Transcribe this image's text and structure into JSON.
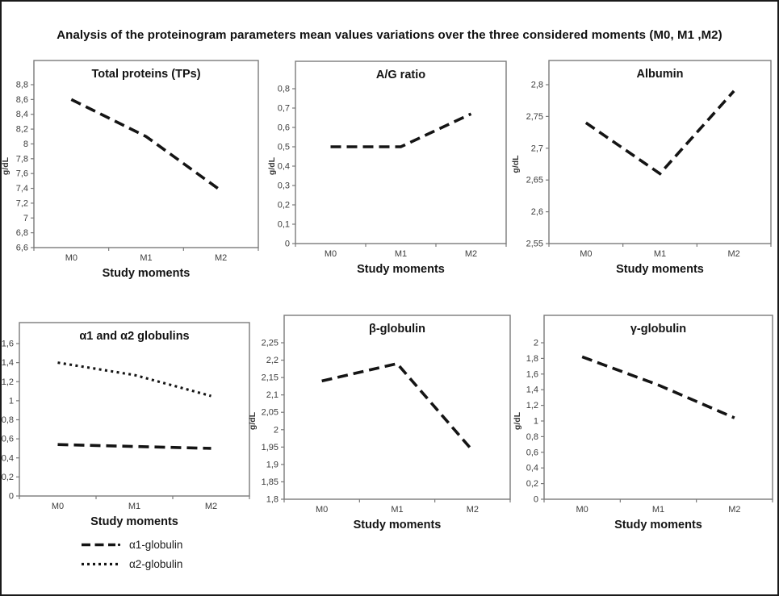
{
  "figure": {
    "title": "Analysis of the proteinogram parameters mean values variations over the three considered moments  (M0, M1 ,M2)"
  },
  "colors": {
    "line": "#141414",
    "plot_border": "#7a7a7a",
    "tick_text": "#3d3d3d",
    "background": "#ffffff",
    "frame": "#1a1a1a"
  },
  "legend": {
    "items": [
      {
        "label": "α1-globulin",
        "style": "dashed"
      },
      {
        "label": "α2-globulin",
        "style": "dotted"
      }
    ]
  },
  "chart_data": [
    {
      "type": "line",
      "title": "Total proteins (TPs)",
      "xlabel": "Study moments",
      "ylabel": "g/dL",
      "categories": [
        "M0",
        "M1",
        "M2"
      ],
      "series": [
        {
          "name": "Total proteins",
          "style": "dashed",
          "values": [
            8.6,
            8.1,
            7.37
          ]
        }
      ],
      "ylim": [
        6.6,
        8.8
      ],
      "ytick_step": 0.2,
      "grid": false,
      "legend_position": "none"
    },
    {
      "type": "line",
      "title": "A/G ratio",
      "xlabel": "Study moments",
      "ylabel": "g/dL",
      "categories": [
        "M0",
        "M1",
        "M2"
      ],
      "series": [
        {
          "name": "A/G ratio",
          "style": "dashed",
          "values": [
            0.5,
            0.5,
            0.67
          ]
        }
      ],
      "ylim": [
        0,
        0.8
      ],
      "ytick_step": 0.1,
      "grid": false,
      "legend_position": "none"
    },
    {
      "type": "line",
      "title": "Albumin",
      "xlabel": "Study moments",
      "ylabel": "g/dL",
      "categories": [
        "M0",
        "M1",
        "M2"
      ],
      "series": [
        {
          "name": "Albumin",
          "style": "dashed",
          "values": [
            2.74,
            2.66,
            2.79
          ]
        }
      ],
      "ylim": [
        2.55,
        2.8
      ],
      "ytick_step": 0.05,
      "grid": false,
      "legend_position": "none"
    },
    {
      "type": "line",
      "title": "α1  and α2 globulins",
      "xlabel": "Study moments",
      "ylabel": "g/dL",
      "categories": [
        "M0",
        "M1",
        "M2"
      ],
      "series": [
        {
          "name": "α2-globulin",
          "style": "dotted",
          "values": [
            1.4,
            1.27,
            1.05
          ]
        },
        {
          "name": "α1-globulin",
          "style": "dashed",
          "values": [
            0.54,
            0.52,
            0.5
          ]
        }
      ],
      "ylim": [
        0,
        1.6
      ],
      "ytick_step": 0.2,
      "grid": false,
      "legend_position": "below-figure"
    },
    {
      "type": "line",
      "title": "β-globulin",
      "xlabel": "Study moments",
      "ylabel": "g/dL",
      "categories": [
        "M0",
        "M1",
        "M2"
      ],
      "series": [
        {
          "name": "β-globulin",
          "style": "dashed",
          "values": [
            2.14,
            2.19,
            1.94
          ]
        }
      ],
      "ylim": [
        1.8,
        2.25
      ],
      "ytick_step": 0.05,
      "grid": false,
      "legend_position": "none"
    },
    {
      "type": "line",
      "title": "γ-globulin",
      "xlabel": "Study moments",
      "ylabel": "g/dL",
      "categories": [
        "M0",
        "M1",
        "M2"
      ],
      "series": [
        {
          "name": "γ-globulin",
          "style": "dashed",
          "values": [
            1.82,
            1.46,
            1.04
          ]
        }
      ],
      "ylim": [
        0,
        2
      ],
      "ytick_step": 0.2,
      "grid": false,
      "legend_position": "none"
    }
  ]
}
